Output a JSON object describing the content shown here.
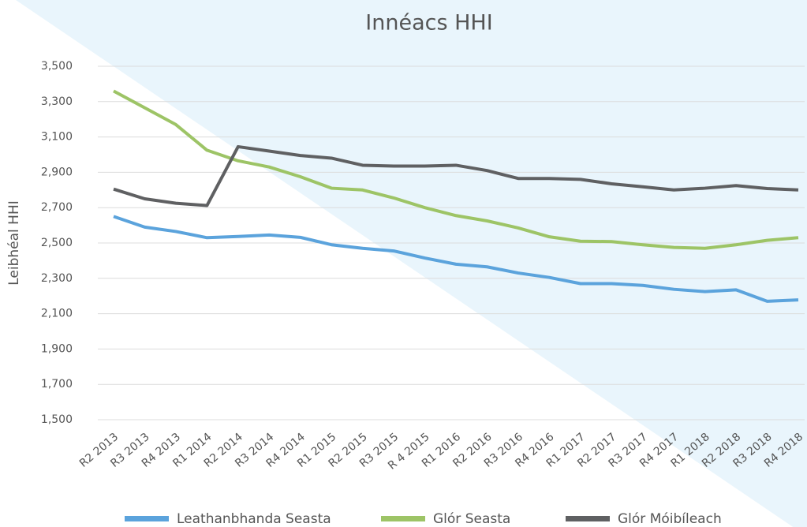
{
  "chart_data": {
    "type": "line",
    "title": "Innéacs HHI",
    "y_label": "Leibhéal HHI",
    "categories": [
      "R2 2013",
      "R3 2013",
      "R4 2013",
      "R1 2014",
      "R2 2014",
      "R3 2014",
      "R4 2014",
      "R1 2015",
      "R2 2015",
      "R3 2015",
      "R 4 2015",
      "R1 2016",
      "R2 2016",
      "R3 2016",
      "R4 2016",
      "R1 2017",
      "R2 2017",
      "R3 2017",
      "R4 2017",
      "R1 2018",
      "R2 2018",
      "R3 2018",
      "R4 2018"
    ],
    "series": [
      {
        "name": "Leathanbhanda Seasta",
        "color": "#5ba3dc",
        "values": [
          2650,
          2590,
          2565,
          2530,
          2537,
          2545,
          2532,
          2490,
          2470,
          2455,
          2415,
          2380,
          2365,
          2330,
          2305,
          2270,
          2270,
          2260,
          2238,
          2225,
          2235,
          2170,
          2178
        ]
      },
      {
        "name": "Glór Seasta",
        "color": "#9dc466",
        "values": [
          3360,
          3265,
          3170,
          3025,
          2965,
          2930,
          2875,
          2810,
          2800,
          2755,
          2700,
          2655,
          2625,
          2585,
          2535,
          2510,
          2508,
          2490,
          2475,
          2470,
          2490,
          2515,
          2530
        ]
      },
      {
        "name": "Glór Móibíleach",
        "color": "#5f6062",
        "values": [
          2805,
          2750,
          2725,
          2712,
          3045,
          3020,
          2995,
          2980,
          2940,
          2935,
          2935,
          2940,
          2910,
          2865,
          2865,
          2860,
          2835,
          2818,
          2800,
          2810,
          2825,
          2808,
          2800
        ]
      }
    ],
    "ylim": [
      1500,
      3500
    ],
    "yticks": [
      {
        "value": 1500,
        "label": "1,500"
      },
      {
        "value": 1700,
        "label": "1,700"
      },
      {
        "value": 1900,
        "label": "1,900"
      },
      {
        "value": 2100,
        "label": "2,100"
      },
      {
        "value": 2300,
        "label": "2,300"
      },
      {
        "value": 2500,
        "label": "2,500"
      },
      {
        "value": 2700,
        "label": "2,700"
      },
      {
        "value": 2900,
        "label": "2,900"
      },
      {
        "value": 3100,
        "label": "3,100"
      },
      {
        "value": 3300,
        "label": "3,300"
      },
      {
        "value": 3500,
        "label": "3,500"
      }
    ],
    "grid": true,
    "legend": "bottom"
  }
}
